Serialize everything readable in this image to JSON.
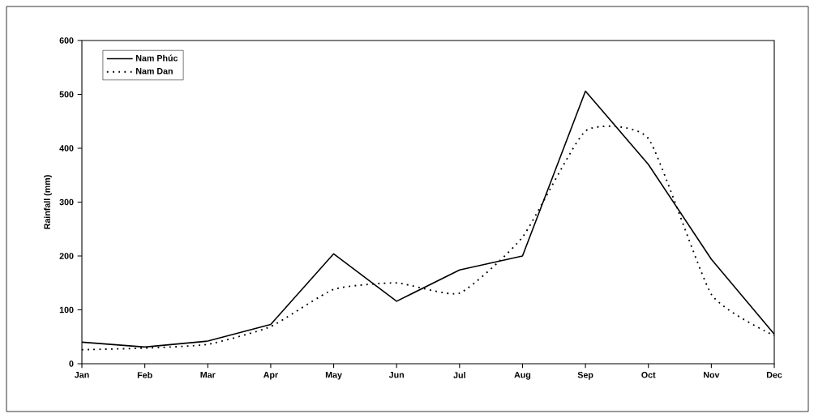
{
  "chart_data": {
    "type": "line",
    "ylabel": "Rainfall (mm)",
    "categories": [
      "Jan",
      "Feb",
      "Mar",
      "Apr",
      "May",
      "Jun",
      "Jul",
      "Aug",
      "Sep",
      "Oct",
      "Nov",
      "Dec"
    ],
    "series": [
      {
        "name": "Nam Phúc",
        "color": "#000000",
        "line_style": "solid",
        "values": [
          40,
          31,
          42,
          73,
          204,
          116,
          174,
          200,
          506,
          370,
          194,
          55
        ]
      },
      {
        "name": "Nam Dan",
        "color": "#000000",
        "line_style": "dotted",
        "values": [
          26,
          29,
          36,
          69,
          138,
          150,
          131,
          235,
          432,
          418,
          129,
          52
        ]
      }
    ],
    "ylim": [
      0,
      600
    ],
    "yticks": [
      0,
      100,
      200,
      300,
      400,
      500,
      600
    ],
    "grid": false,
    "legend": "top left",
    "marker": "none"
  }
}
